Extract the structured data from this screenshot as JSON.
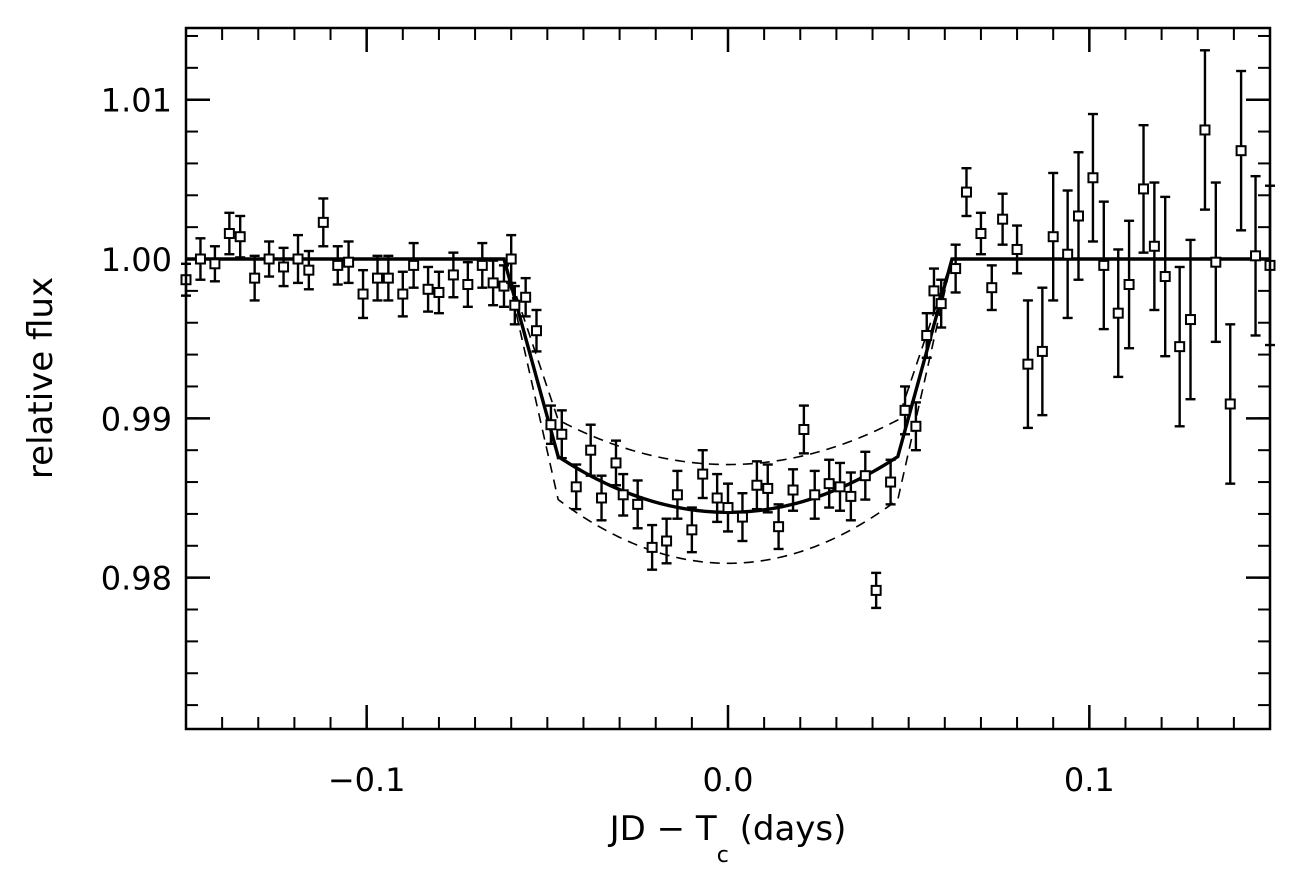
{
  "chart_data": {
    "type": "scatter",
    "title": "",
    "xlabel": {
      "main": "JD − T",
      "sub": "c",
      "tail": " (days)"
    },
    "ylabel": "relative flux",
    "xlim": [
      -0.15,
      0.15
    ],
    "ylim": [
      0.9705,
      1.0145
    ],
    "x_ticks": [
      -0.1,
      0.0,
      0.1
    ],
    "x_tick_labels": [
      "−0.1",
      "0.0",
      "0.1"
    ],
    "x_minor_step": 0.01,
    "y_ticks": [
      0.98,
      0.99,
      1.0,
      1.01
    ],
    "y_tick_labels": [
      "0.98",
      "0.99",
      "1.00",
      "1.01"
    ],
    "y_minor_step": 0.002,
    "grid": false,
    "legend": "none",
    "model": {
      "t1": 0.062,
      "t2": 0.047,
      "depth": 0.0159,
      "curvature": 0.0035
    },
    "model_bounds": [
      {
        "depth": 0.0129,
        "curvature": 0.0028
      },
      {
        "depth": 0.0191,
        "curvature": 0.004
      }
    ],
    "points": [
      [
        -0.15,
        0.9987,
        0.001
      ],
      [
        -0.146,
        1.0,
        0.0013
      ],
      [
        -0.142,
        0.9997,
        0.0011
      ],
      [
        -0.138,
        1.0016,
        0.0013
      ],
      [
        -0.135,
        1.0014,
        0.0013
      ],
      [
        -0.131,
        0.9988,
        0.0014
      ],
      [
        -0.127,
        1.0,
        0.0011
      ],
      [
        -0.123,
        0.9995,
        0.0012
      ],
      [
        -0.119,
        1.0,
        0.0015
      ],
      [
        -0.116,
        0.9993,
        0.0012
      ],
      [
        -0.112,
        1.0023,
        0.0015
      ],
      [
        -0.108,
        0.9996,
        0.0012
      ],
      [
        -0.105,
        0.9998,
        0.0013
      ],
      [
        -0.101,
        0.9978,
        0.0015
      ],
      [
        -0.097,
        0.9988,
        0.0014
      ],
      [
        -0.094,
        0.9988,
        0.0014
      ],
      [
        -0.09,
        0.9978,
        0.0014
      ],
      [
        -0.087,
        0.9996,
        0.0014
      ],
      [
        -0.083,
        0.9981,
        0.0014
      ],
      [
        -0.08,
        0.9979,
        0.0013
      ],
      [
        -0.076,
        0.999,
        0.0014
      ],
      [
        -0.072,
        0.9984,
        0.0014
      ],
      [
        -0.068,
        0.9996,
        0.0014
      ],
      [
        -0.065,
        0.9985,
        0.0014
      ],
      [
        -0.062,
        0.9983,
        0.0013
      ],
      [
        -0.06,
        1.0,
        0.0015
      ],
      [
        -0.059,
        0.9971,
        0.0012
      ],
      [
        -0.056,
        0.9976,
        0.0012
      ],
      [
        -0.053,
        0.9955,
        0.0013
      ],
      [
        -0.049,
        0.9896,
        0.0012
      ],
      [
        -0.046,
        0.989,
        0.0015
      ],
      [
        -0.042,
        0.9857,
        0.0014
      ],
      [
        -0.038,
        0.988,
        0.0016
      ],
      [
        -0.035,
        0.985,
        0.0014
      ],
      [
        -0.031,
        0.9872,
        0.0014
      ],
      [
        -0.029,
        0.9852,
        0.0013
      ],
      [
        -0.025,
        0.9846,
        0.0015
      ],
      [
        -0.021,
        0.9819,
        0.0014
      ],
      [
        -0.017,
        0.9823,
        0.0014
      ],
      [
        -0.014,
        0.9852,
        0.0015
      ],
      [
        -0.01,
        0.983,
        0.0014
      ],
      [
        -0.007,
        0.9865,
        0.0015
      ],
      [
        -0.003,
        0.985,
        0.0015
      ],
      [
        0.0,
        0.9844,
        0.0015
      ],
      [
        0.004,
        0.9838,
        0.0015
      ],
      [
        0.008,
        0.9858,
        0.0015
      ],
      [
        0.011,
        0.9856,
        0.0015
      ],
      [
        0.014,
        0.9832,
        0.0014
      ],
      [
        0.018,
        0.9855,
        0.0013
      ],
      [
        0.021,
        0.9893,
        0.0015
      ],
      [
        0.024,
        0.9852,
        0.0015
      ],
      [
        0.028,
        0.9859,
        0.0015
      ],
      [
        0.031,
        0.9857,
        0.0015
      ],
      [
        0.034,
        0.9851,
        0.0015
      ],
      [
        0.038,
        0.9864,
        0.0015
      ],
      [
        0.041,
        0.9792,
        0.0011
      ],
      [
        0.045,
        0.986,
        0.0014
      ],
      [
        0.049,
        0.9905,
        0.0015
      ],
      [
        0.052,
        0.9895,
        0.0015
      ],
      [
        0.055,
        0.9952,
        0.0014
      ],
      [
        0.057,
        0.998,
        0.0014
      ],
      [
        0.059,
        0.9972,
        0.0015
      ],
      [
        0.063,
        0.9994,
        0.0015
      ],
      [
        0.066,
        1.0042,
        0.0015
      ],
      [
        0.07,
        1.0016,
        0.0013
      ],
      [
        0.073,
        0.9982,
        0.0014
      ],
      [
        0.076,
        1.0025,
        0.0016
      ],
      [
        0.08,
        1.0006,
        0.0015
      ],
      [
        0.083,
        0.9934,
        0.004
      ],
      [
        0.087,
        0.9942,
        0.004
      ],
      [
        0.09,
        1.0014,
        0.004
      ],
      [
        0.094,
        1.0003,
        0.004
      ],
      [
        0.097,
        1.0027,
        0.004
      ],
      [
        0.101,
        1.0051,
        0.004
      ],
      [
        0.104,
        0.9996,
        0.004
      ],
      [
        0.108,
        0.9966,
        0.004
      ],
      [
        0.111,
        0.9984,
        0.004
      ],
      [
        0.115,
        1.0044,
        0.004
      ],
      [
        0.118,
        1.0008,
        0.004
      ],
      [
        0.121,
        0.9989,
        0.005
      ],
      [
        0.125,
        0.9945,
        0.005
      ],
      [
        0.128,
        0.9962,
        0.005
      ],
      [
        0.132,
        1.0081,
        0.005
      ],
      [
        0.135,
        0.9998,
        0.005
      ],
      [
        0.139,
        0.9909,
        0.005
      ],
      [
        0.142,
        1.0068,
        0.005
      ],
      [
        0.146,
        1.0002,
        0.005
      ],
      [
        0.15,
        0.9996,
        0.005
      ]
    ]
  }
}
